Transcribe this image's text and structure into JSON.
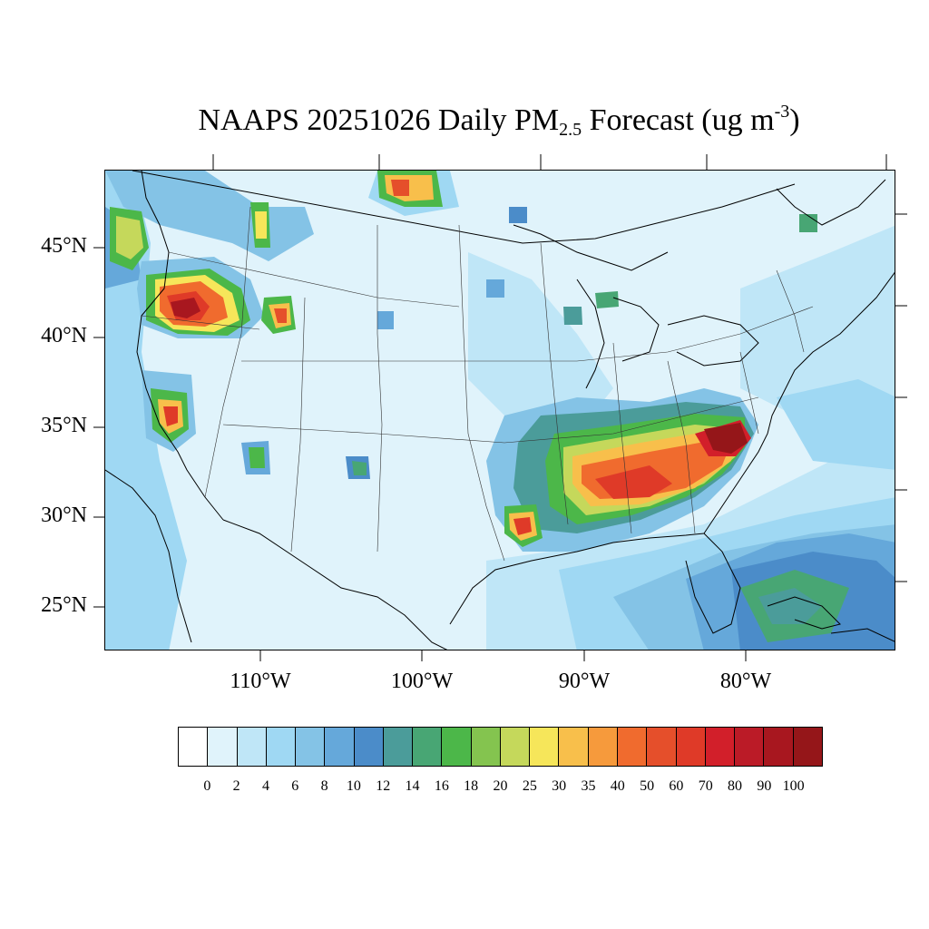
{
  "title": {
    "prefix": "NAAPS 20251026 Daily PM",
    "subscript": "2.5",
    "middle": " Forecast (ug m",
    "superscript": "-3",
    "suffix": ")"
  },
  "lat_labels": [
    "45°N",
    "40°N",
    "35°N",
    "30°N",
    "25°N"
  ],
  "lon_labels": [
    "110°W",
    "100°W",
    "90°W",
    "80°W"
  ],
  "colorbar": {
    "labels": [
      "0",
      "2",
      "4",
      "6",
      "8",
      "10",
      "12",
      "14",
      "16",
      "18",
      "20",
      "25",
      "30",
      "35",
      "40",
      "50",
      "60",
      "70",
      "80",
      "90",
      "100"
    ],
    "colors": [
      "#ffffff",
      "#e0f3fb",
      "#bfe6f7",
      "#9fd8f3",
      "#84c3e6",
      "#65a8da",
      "#4b8cc9",
      "#4b9c9a",
      "#48a674",
      "#4cb749",
      "#84c44f",
      "#c5d85b",
      "#f6e65a",
      "#f8bf4b",
      "#f69a3c",
      "#f06b2e",
      "#e54f2b",
      "#df3a28",
      "#d21f2a",
      "#bb1b27",
      "#a8171f",
      "#951619"
    ]
  },
  "colors": {
    "background": "#e0f3fb",
    "land_outline": "#000000",
    "state_lines": "#333333"
  }
}
